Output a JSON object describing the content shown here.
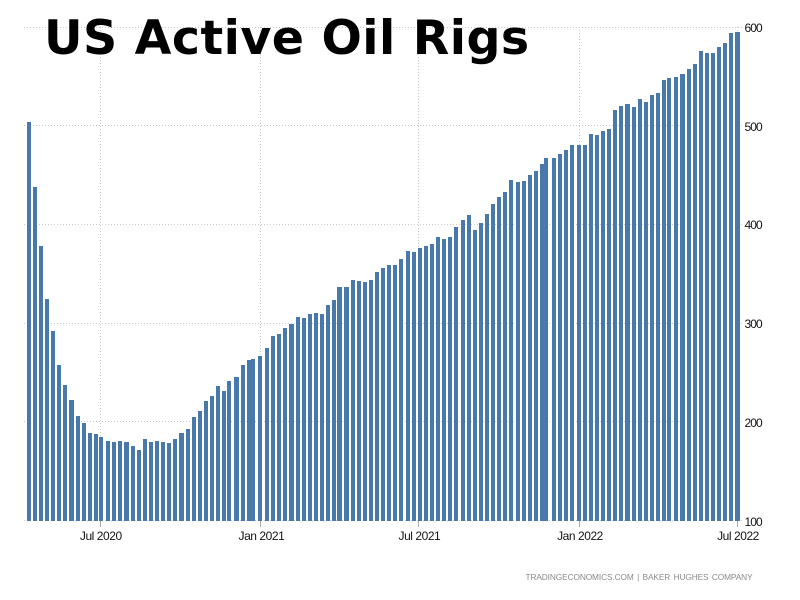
{
  "title": "US Active Oil Rigs",
  "attribution": {
    "text": "TRADINGECONOMICS.COM | BAKER HUGHES COMPANY"
  },
  "colors": {
    "background": "#ffffff",
    "bar": "#4978aa",
    "grid": "#c8c8c8",
    "tick": "#a9a9a9",
    "axis_label": "#141414",
    "title": "#000000",
    "attribution": "#8a8a8a"
  },
  "chart_data": {
    "type": "bar",
    "title": "US Active Oil Rigs",
    "xlabel": "",
    "ylabel": "",
    "unit": "rigs",
    "frequency": "weekly",
    "ylim": [
      100,
      600
    ],
    "grid": "dotted",
    "legend": "none",
    "y_axis_side": "right",
    "y_ticks": [
      100,
      200,
      300,
      400,
      500,
      600
    ],
    "x_ticks": [
      {
        "label": "Jul 2020",
        "date": "2020-07-01"
      },
      {
        "label": "Jan 2021",
        "date": "2021-01-01"
      },
      {
        "label": "Jul 2021",
        "date": "2021-07-01"
      },
      {
        "label": "Jan 2022",
        "date": "2022-01-01"
      },
      {
        "label": "Jul 2022",
        "date": "2022-07-01"
      }
    ],
    "series": [
      {
        "name": "US Active Oil Rigs",
        "points": [
          [
            "2020-04-10",
            504
          ],
          [
            "2020-04-17",
            438
          ],
          [
            "2020-04-24",
            378
          ],
          [
            "2020-05-01",
            325
          ],
          [
            "2020-05-08",
            292
          ],
          [
            "2020-05-15",
            258
          ],
          [
            "2020-05-22",
            237
          ],
          [
            "2020-05-29",
            222
          ],
          [
            "2020-06-05",
            206
          ],
          [
            "2020-06-12",
            199
          ],
          [
            "2020-06-19",
            189
          ],
          [
            "2020-06-26",
            188
          ],
          [
            "2020-07-02",
            185
          ],
          [
            "2020-07-10",
            181
          ],
          [
            "2020-07-17",
            180
          ],
          [
            "2020-07-24",
            181
          ],
          [
            "2020-07-31",
            180
          ],
          [
            "2020-08-07",
            176
          ],
          [
            "2020-08-14",
            172
          ],
          [
            "2020-08-21",
            183
          ],
          [
            "2020-08-28",
            180
          ],
          [
            "2020-09-04",
            181
          ],
          [
            "2020-09-11",
            180
          ],
          [
            "2020-09-18",
            179
          ],
          [
            "2020-09-25",
            183
          ],
          [
            "2020-10-02",
            189
          ],
          [
            "2020-10-09",
            193
          ],
          [
            "2020-10-16",
            205
          ],
          [
            "2020-10-23",
            211
          ],
          [
            "2020-10-30",
            221
          ],
          [
            "2020-11-06",
            226
          ],
          [
            "2020-11-13",
            236
          ],
          [
            "2020-11-20",
            231
          ],
          [
            "2020-11-25",
            241
          ],
          [
            "2020-12-04",
            246
          ],
          [
            "2020-12-11",
            258
          ],
          [
            "2020-12-18",
            263
          ],
          [
            "2020-12-23",
            264
          ],
          [
            "2020-12-31",
            267
          ],
          [
            "2021-01-08",
            275
          ],
          [
            "2021-01-15",
            287
          ],
          [
            "2021-01-22",
            289
          ],
          [
            "2021-01-29",
            295
          ],
          [
            "2021-02-05",
            299
          ],
          [
            "2021-02-12",
            306
          ],
          [
            "2021-02-19",
            305
          ],
          [
            "2021-02-26",
            309
          ],
          [
            "2021-03-05",
            310
          ],
          [
            "2021-03-12",
            309
          ],
          [
            "2021-03-19",
            318
          ],
          [
            "2021-03-26",
            324
          ],
          [
            "2021-04-01",
            337
          ],
          [
            "2021-04-09",
            337
          ],
          [
            "2021-04-16",
            344
          ],
          [
            "2021-04-23",
            343
          ],
          [
            "2021-04-30",
            342
          ],
          [
            "2021-05-07",
            344
          ],
          [
            "2021-05-14",
            352
          ],
          [
            "2021-05-21",
            356
          ],
          [
            "2021-05-28",
            359
          ],
          [
            "2021-06-04",
            359
          ],
          [
            "2021-06-11",
            365
          ],
          [
            "2021-06-18",
            373
          ],
          [
            "2021-06-25",
            372
          ],
          [
            "2021-07-02",
            376
          ],
          [
            "2021-07-09",
            378
          ],
          [
            "2021-07-16",
            380
          ],
          [
            "2021-07-23",
            387
          ],
          [
            "2021-07-30",
            385
          ],
          [
            "2021-08-06",
            387
          ],
          [
            "2021-08-13",
            397
          ],
          [
            "2021-08-20",
            405
          ],
          [
            "2021-08-27",
            410
          ],
          [
            "2021-09-03",
            394
          ],
          [
            "2021-09-10",
            401
          ],
          [
            "2021-09-17",
            411
          ],
          [
            "2021-09-24",
            421
          ],
          [
            "2021-10-01",
            428
          ],
          [
            "2021-10-08",
            433
          ],
          [
            "2021-10-15",
            445
          ],
          [
            "2021-10-22",
            443
          ],
          [
            "2021-10-29",
            444
          ],
          [
            "2021-11-05",
            450
          ],
          [
            "2021-11-12",
            454
          ],
          [
            "2021-11-19",
            461
          ],
          [
            "2021-11-24",
            467
          ],
          [
            "2021-12-03",
            467
          ],
          [
            "2021-12-10",
            471
          ],
          [
            "2021-12-17",
            475
          ],
          [
            "2021-12-23",
            480
          ],
          [
            "2021-12-31",
            480
          ],
          [
            "2022-01-07",
            481
          ],
          [
            "2022-01-14",
            492
          ],
          [
            "2022-01-21",
            491
          ],
          [
            "2022-01-28",
            495
          ],
          [
            "2022-02-04",
            497
          ],
          [
            "2022-02-11",
            516
          ],
          [
            "2022-02-18",
            520
          ],
          [
            "2022-02-25",
            522
          ],
          [
            "2022-03-04",
            519
          ],
          [
            "2022-03-11",
            527
          ],
          [
            "2022-03-18",
            524
          ],
          [
            "2022-03-25",
            531
          ],
          [
            "2022-04-01",
            533
          ],
          [
            "2022-04-08",
            546
          ],
          [
            "2022-04-14",
            548
          ],
          [
            "2022-04-22",
            549
          ],
          [
            "2022-04-29",
            552
          ],
          [
            "2022-05-06",
            557
          ],
          [
            "2022-05-13",
            563
          ],
          [
            "2022-05-20",
            576
          ],
          [
            "2022-05-27",
            574
          ],
          [
            "2022-06-03",
            574
          ],
          [
            "2022-06-10",
            580
          ],
          [
            "2022-06-17",
            584
          ],
          [
            "2022-06-24",
            594
          ],
          [
            "2022-07-01",
            595
          ]
        ]
      }
    ]
  }
}
